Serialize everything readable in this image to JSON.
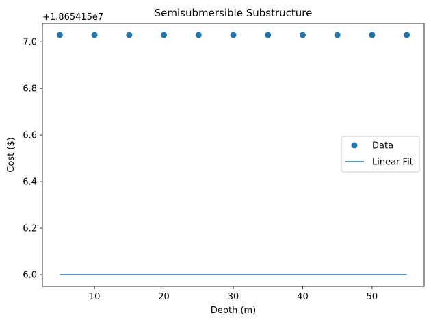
{
  "chart_data": {
    "type": "scatter",
    "title": "Semisubmersible Substructure",
    "xlabel": "Depth (m)",
    "ylabel": "Cost ($)",
    "offset_text": "+1.865415e7",
    "xlim": [
      2.5,
      57.5
    ],
    "ylim": [
      5.95,
      7.08
    ],
    "xticks": [
      10,
      20,
      30,
      40,
      50
    ],
    "yticks": [
      6.0,
      6.2,
      6.4,
      6.6,
      6.8,
      7.0
    ],
    "ytick_labels": [
      "6.0",
      "6.2",
      "6.4",
      "6.6",
      "6.8",
      "7.0"
    ],
    "series": [
      {
        "name": "Data",
        "kind": "scatter",
        "color": "#1f77b4",
        "x": [
          5,
          10,
          15,
          20,
          25,
          30,
          35,
          40,
          45,
          50,
          55
        ],
        "y": [
          7.03,
          7.03,
          7.03,
          7.03,
          7.03,
          7.03,
          7.03,
          7.03,
          7.03,
          7.03,
          7.03
        ]
      },
      {
        "name": "Linear Fit",
        "kind": "line",
        "color": "#1f77b4",
        "x": [
          5,
          55
        ],
        "y": [
          6.0,
          6.0
        ]
      }
    ],
    "legend": {
      "position": "center-right"
    },
    "grid": false
  }
}
